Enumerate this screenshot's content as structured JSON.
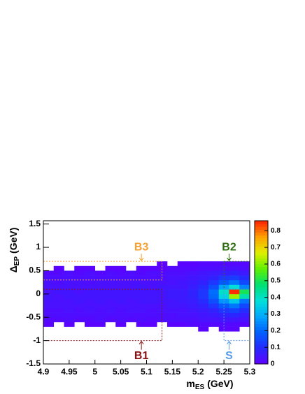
{
  "chart_data": {
    "type": "heatmap",
    "xlabel": {
      "main": "m",
      "sub": "ES",
      "unit": "(GeV)"
    },
    "ylabel": {
      "main": "Δ",
      "sub": "EP",
      "unit": "(GeV)"
    },
    "xlim": [
      4.9,
      5.3
    ],
    "ylim": [
      -1.5,
      1.57
    ],
    "xticks": [
      4.9,
      4.95,
      5,
      5.05,
      5.1,
      5.15,
      5.2,
      5.25,
      5.3
    ],
    "yticks": [
      -1.5,
      -1,
      -0.5,
      0,
      0.5,
      1,
      1.5
    ],
    "zlim": [
      0,
      0.86
    ],
    "zticks": [
      0,
      0.1,
      0.2,
      0.3,
      0.4,
      0.5,
      0.6,
      0.7,
      0.8
    ],
    "palette": [
      "#6000ff",
      "#2828ff",
      "#0060ff",
      "#00a8ff",
      "#00e0d8",
      "#00e070",
      "#60f000",
      "#e0f000",
      "#ffa000",
      "#ff2000"
    ],
    "xbins": [
      4.9,
      4.92,
      4.94,
      4.96,
      4.98,
      5,
      5.02,
      5.04,
      5.06,
      5.08,
      5.1,
      5.12,
      5.14,
      5.16,
      5.18,
      5.2,
      5.22,
      5.24,
      5.26,
      5.28,
      5.3
    ],
    "ybins": [
      -0.8,
      -0.7,
      -0.6,
      -0.5,
      -0.4,
      -0.3,
      -0.2,
      -0.1,
      0,
      0.1,
      0.2,
      0.3,
      0.4,
      0.5,
      0.6,
      0.7
    ],
    "z": [
      [
        null,
        null,
        null,
        null,
        null,
        null,
        null,
        null,
        null,
        null,
        null,
        null,
        null,
        null,
        null,
        0.01,
        null,
        0.01,
        0.01,
        null
      ],
      [
        0.01,
        null,
        0.01,
        null,
        0.01,
        0.01,
        null,
        0.01,
        null,
        0.01,
        0.01,
        null,
        0.01,
        0.01,
        0.02,
        0.02,
        0.02,
        0.02,
        0.02,
        0.01
      ],
      [
        0.02,
        0.02,
        0.03,
        0.02,
        0.02,
        0.03,
        0.02,
        0.03,
        0.02,
        0.03,
        0.02,
        0.03,
        0.03,
        0.03,
        0.03,
        0.04,
        0.04,
        0.05,
        0.05,
        0.04
      ],
      [
        0.03,
        0.03,
        0.03,
        0.03,
        0.03,
        0.03,
        0.03,
        0.03,
        0.03,
        0.03,
        0.03,
        0.03,
        0.03,
        0.04,
        0.04,
        0.05,
        0.06,
        0.08,
        0.09,
        0.07
      ],
      [
        0.03,
        0.03,
        0.04,
        0.03,
        0.04,
        0.03,
        0.04,
        0.03,
        0.04,
        0.04,
        0.03,
        0.04,
        0.04,
        0.04,
        0.05,
        0.06,
        0.08,
        0.12,
        0.14,
        0.1
      ],
      [
        0.04,
        0.04,
        0.04,
        0.04,
        0.04,
        0.04,
        0.04,
        0.04,
        0.04,
        0.04,
        0.04,
        0.04,
        0.05,
        0.05,
        0.06,
        0.08,
        0.12,
        0.18,
        0.22,
        0.15
      ],
      [
        0.04,
        0.04,
        0.04,
        0.05,
        0.04,
        0.05,
        0.04,
        0.05,
        0.04,
        0.05,
        0.05,
        0.05,
        0.05,
        0.06,
        0.07,
        0.1,
        0.16,
        0.26,
        0.34,
        0.22
      ],
      [
        0.05,
        0.04,
        0.05,
        0.05,
        0.05,
        0.05,
        0.05,
        0.05,
        0.05,
        0.05,
        0.05,
        0.05,
        0.06,
        0.06,
        0.08,
        0.12,
        0.2,
        0.36,
        0.62,
        0.42
      ],
      [
        0.04,
        0.05,
        0.05,
        0.04,
        0.05,
        0.05,
        0.05,
        0.05,
        0.05,
        0.05,
        0.05,
        0.05,
        0.06,
        0.06,
        0.08,
        0.12,
        0.21,
        0.4,
        0.85,
        0.5
      ],
      [
        0.04,
        0.04,
        0.04,
        0.04,
        0.04,
        0.04,
        0.04,
        0.04,
        0.04,
        0.05,
        0.04,
        0.05,
        0.05,
        0.05,
        0.07,
        0.1,
        0.16,
        0.28,
        0.38,
        0.24
      ],
      [
        0.04,
        0.03,
        0.04,
        0.04,
        0.03,
        0.04,
        0.04,
        0.04,
        0.04,
        0.04,
        0.04,
        0.04,
        0.04,
        0.05,
        0.06,
        0.08,
        0.12,
        0.18,
        0.22,
        0.15
      ],
      [
        0.03,
        0.03,
        0.03,
        0.03,
        0.03,
        0.03,
        0.03,
        0.03,
        0.03,
        0.03,
        0.03,
        0.03,
        0.04,
        0.04,
        0.05,
        0.06,
        0.08,
        0.12,
        0.13,
        0.1
      ],
      [
        0.02,
        0.02,
        0.03,
        0.02,
        0.03,
        0.02,
        0.03,
        0.02,
        0.03,
        0.02,
        0.03,
        0.03,
        0.03,
        0.03,
        0.04,
        0.05,
        0.06,
        0.07,
        0.08,
        0.06
      ],
      [
        null,
        0.01,
        null,
        0.01,
        0.01,
        null,
        0.01,
        0.01,
        null,
        0.01,
        0.01,
        0.01,
        0.02,
        0.02,
        0.02,
        0.03,
        0.03,
        0.04,
        0.04,
        0.03
      ],
      [
        null,
        null,
        null,
        null,
        null,
        null,
        null,
        null,
        null,
        null,
        null,
        0.01,
        null,
        0.01,
        0.01,
        0.02,
        0.02,
        0.02,
        0.02,
        0.02
      ]
    ],
    "regions": [
      {
        "name": "B3",
        "color": "#f5a030",
        "x": [
          4.9,
          5.13
        ],
        "y": [
          0.3,
          0.7
        ],
        "label_side": "above"
      },
      {
        "name": "B2",
        "color": "#2e6e10",
        "x": [
          5.25,
          5.3
        ],
        "y": [
          0.1,
          0.7
        ],
        "label_side": "above"
      },
      {
        "name": "B1",
        "color": "#8b1010",
        "x": [
          4.9,
          5.13
        ],
        "y": [
          -1,
          0.1
        ],
        "label_side": "below"
      },
      {
        "name": "S",
        "color": "#5a9be8",
        "x": [
          5.25,
          5.3
        ],
        "y": [
          -1,
          0.1
        ],
        "label_side": "below"
      }
    ]
  }
}
